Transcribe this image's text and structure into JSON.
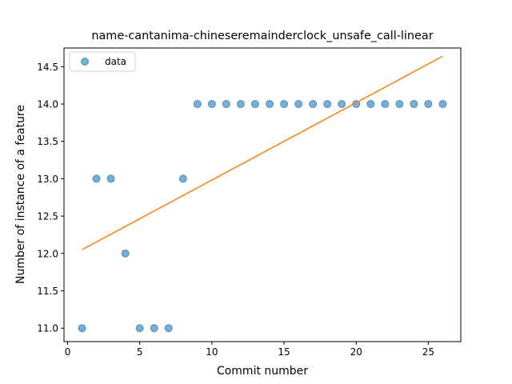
{
  "chart_data": {
    "type": "scatter",
    "title": "name-cantanima-chineseremainderclock_unsafe_call-linear",
    "xlabel": "Commit number",
    "ylabel": "Number of instance of a feature",
    "xlim": [
      -0.25,
      27.25
    ],
    "ylim": [
      10.82,
      14.75
    ],
    "xticks": [
      0,
      5,
      10,
      15,
      20,
      25
    ],
    "yticks": [
      11.0,
      11.5,
      12.0,
      12.5,
      13.0,
      13.5,
      14.0,
      14.5
    ],
    "ytick_labels": [
      "11.0",
      "11.5",
      "12.0",
      "12.5",
      "13.0",
      "13.5",
      "14.0",
      "14.5"
    ],
    "grid": false,
    "legend_position": "top-left",
    "series": [
      {
        "name": "data",
        "kind": "scatter",
        "color": "#1f77b4",
        "x": [
          1,
          2,
          3,
          4,
          5,
          6,
          7,
          8,
          9,
          10,
          11,
          12,
          13,
          14,
          15,
          16,
          17,
          18,
          19,
          20,
          21,
          22,
          23,
          24,
          25,
          26
        ],
        "y": [
          11,
          13,
          13,
          12,
          11,
          11,
          11,
          13,
          14,
          14,
          14,
          14,
          14,
          14,
          14,
          14,
          14,
          14,
          14,
          14,
          14,
          14,
          14,
          14,
          14,
          14
        ]
      },
      {
        "kind": "line",
        "color": "#ff7f0e",
        "x": [
          1,
          26
        ],
        "y": [
          12.05,
          14.64
        ]
      }
    ]
  }
}
